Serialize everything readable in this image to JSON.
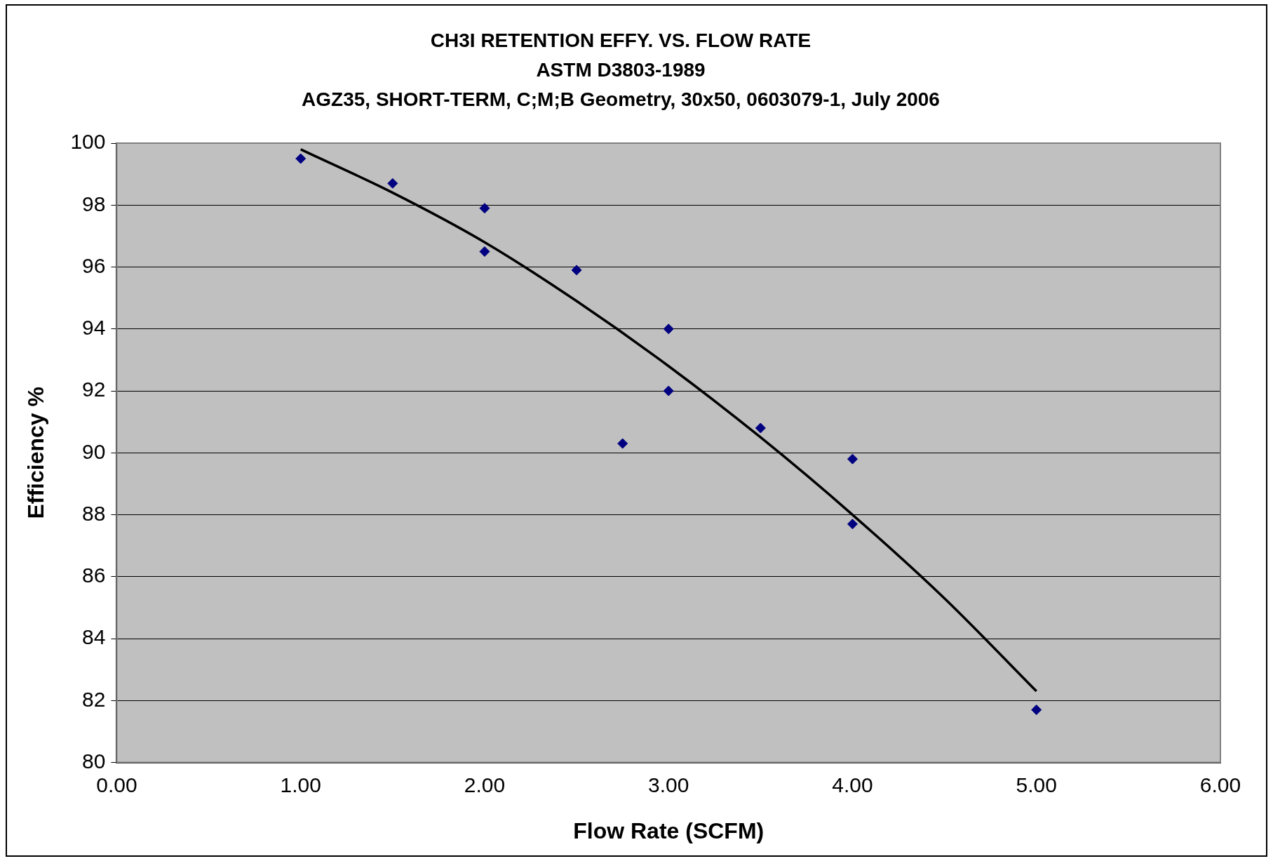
{
  "chart_data": {
    "type": "scatter",
    "title": "CH3I RETENTION EFFY. VS. FLOW RATE",
    "subtitle": "ASTM D3803-1989\nAGZ35, SHORT-TERM, C;M;B Geometry, 30x50, 0603079-1, July 2006",
    "xlabel": "Flow Rate (SCFM)",
    "ylabel": "Efficiency %",
    "series": [
      {
        "color": "#000080",
        "marker": "diamond",
        "x": [
          1,
          1.5,
          2,
          2,
          2.5,
          2.75,
          3,
          3,
          3.5,
          4,
          4,
          5
        ],
        "values": [
          99.5,
          98.7,
          97.9,
          96.5,
          95.9,
          90.3,
          94.0,
          92.0,
          90.8,
          89.8,
          87.7,
          81.7
        ]
      },
      {
        "type": "line",
        "color": "#000000",
        "marker": "none",
        "x": [
          1,
          1.5,
          2,
          2.5,
          3,
          3.5,
          4,
          4.5,
          5
        ],
        "values": [
          99.8,
          98.4,
          96.8,
          94.9,
          92.8,
          90.5,
          88.0,
          85.3,
          82.3
        ]
      }
    ],
    "xlim": [
      0,
      6
    ],
    "xticks": [
      {
        "value": 0,
        "label": "0.00"
      },
      {
        "value": 1,
        "label": "1.00"
      },
      {
        "value": 2,
        "label": "2.00"
      },
      {
        "value": 3,
        "label": "3.00"
      },
      {
        "value": 4,
        "label": "4.00"
      },
      {
        "value": 5,
        "label": "5.00"
      },
      {
        "value": 6,
        "label": "6.00"
      }
    ],
    "ylim": [
      80,
      100
    ],
    "yticks": [
      80,
      82,
      84,
      86,
      88,
      90,
      92,
      94,
      96,
      98,
      100
    ],
    "grid": "y",
    "legend": false
  }
}
